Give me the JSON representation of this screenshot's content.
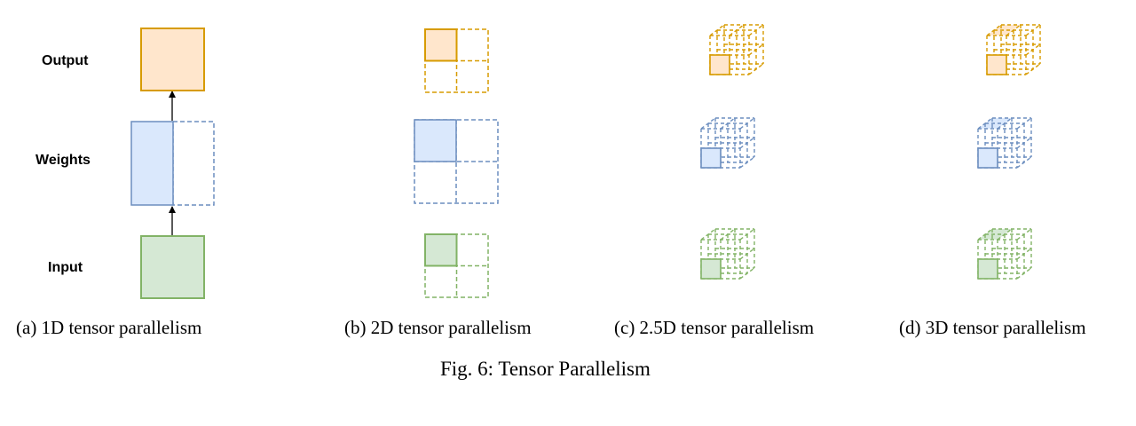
{
  "row_labels": {
    "output": "Output",
    "weights": "Weights",
    "input": "Input"
  },
  "panels": [
    {
      "id": "a",
      "caption": "(a) 1D tensor parallelism"
    },
    {
      "id": "b",
      "caption": "(b) 2D tensor parallelism"
    },
    {
      "id": "c",
      "caption": "(c) 2.5D tensor parallelism"
    },
    {
      "id": "d",
      "caption": "(d) 3D tensor parallelism"
    }
  ],
  "figure_title": "Fig. 6: Tensor Parallelism",
  "colors": {
    "output_stroke": "#d79b00",
    "output_fill": "#ffe6cc",
    "weights_stroke": "#6c8ebf",
    "weights_fill": "#dae8fc",
    "input_stroke": "#82b366",
    "input_fill": "#d5e8d4",
    "arrow": "#000000"
  }
}
